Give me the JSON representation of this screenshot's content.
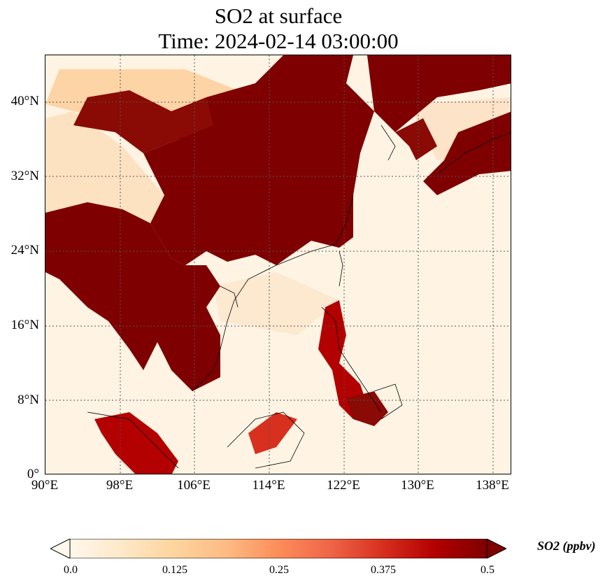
{
  "title": {
    "line1": "SO2 at surface",
    "line2": "Time: 2024-02-14 03:00:00"
  },
  "map": {
    "lon_range": [
      90,
      140
    ],
    "lat_range": [
      0,
      45
    ],
    "lat_ticks": [
      "40°N",
      "32°N",
      "24°N",
      "16°N",
      "8°N",
      "0°"
    ],
    "lon_ticks": [
      "90°E",
      "98°E",
      "106°E",
      "114°E",
      "122°E",
      "130°E",
      "138°E"
    ],
    "gridlines": "dotted",
    "colormap": [
      "#fff7ec",
      "#fee8c8",
      "#fdd49e",
      "#fdbb84",
      "#fc8d59",
      "#ef6548",
      "#d7301f",
      "#b30000",
      "#7f0000"
    ]
  },
  "colorbar": {
    "label": "SO2 (ppbv)",
    "ticks": [
      "0.0",
      "0.125",
      "0.25",
      "0.375",
      "0.5"
    ],
    "range": [
      0.0,
      0.5
    ],
    "extend": "both"
  }
}
